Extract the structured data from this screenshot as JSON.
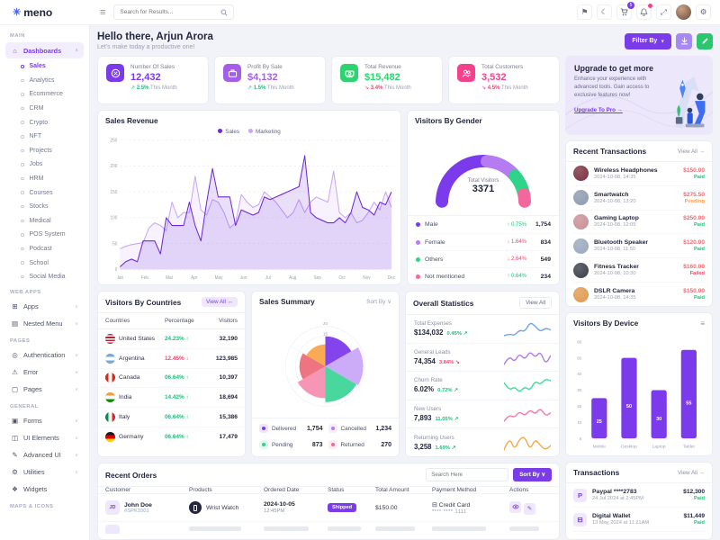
{
  "brand": {
    "logo_text": "meno",
    "logo_icon": "✳"
  },
  "topbar": {
    "hamburger_icon": "≡",
    "search_placeholder": "Search for Results...",
    "icons": [
      {
        "name": "language-icon",
        "glyph": "⚑"
      },
      {
        "name": "dark-mode-icon",
        "glyph": "☾"
      },
      {
        "name": "cart-icon",
        "glyph": "cart",
        "badge": "5",
        "badge_color": "#7c3aed"
      },
      {
        "name": "notifications-icon",
        "glyph": "bell",
        "dot_color": "#f5418c"
      },
      {
        "name": "fullscreen-icon",
        "glyph": "⤢"
      },
      {
        "name": "avatar",
        "glyph": "avatar"
      },
      {
        "name": "settings-icon",
        "glyph": "⚙"
      }
    ]
  },
  "sidebar": {
    "sections": [
      {
        "label": "MAIN",
        "items": [
          {
            "label": "Dashboards",
            "icon": "home",
            "active": true,
            "collapsible": true,
            "expanded": true,
            "active_child": "Sales",
            "children": [
              "Sales",
              "Analytics",
              "Ecommerce",
              "CRM",
              "Crypto",
              "NFT",
              "Projects",
              "Jobs",
              "HRM",
              "Courses",
              "Stocks",
              "Medical",
              "POS System",
              "Podcast",
              "School",
              "Social Media"
            ]
          }
        ]
      },
      {
        "label": "WEB APPS",
        "items": [
          {
            "label": "Apps",
            "icon": "apps",
            "collapsible": true
          },
          {
            "label": "Nested Menu",
            "icon": "nested",
            "collapsible": true
          }
        ]
      },
      {
        "label": "PAGES",
        "items": [
          {
            "label": "Authentication",
            "icon": "auth",
            "collapsible": true
          },
          {
            "label": "Error",
            "icon": "error",
            "collapsible": true
          },
          {
            "label": "Pages",
            "icon": "pages",
            "collapsible": true
          }
        ]
      },
      {
        "label": "GENERAL",
        "items": [
          {
            "label": "Forms",
            "icon": "forms",
            "collapsible": true
          },
          {
            "label": "UI Elements",
            "icon": "ui",
            "collapsible": true
          },
          {
            "label": "Advanced UI",
            "icon": "advui",
            "collapsible": true
          },
          {
            "label": "Utilities",
            "icon": "util",
            "collapsible": true
          },
          {
            "label": "Widgets",
            "icon": "widgets",
            "collapsible": false
          }
        ]
      },
      {
        "label": "MAPS & ICONS",
        "items": []
      }
    ]
  },
  "header": {
    "greeting": "Hello there, Arjun Arora",
    "subtitle": "Let's make today a productive one!",
    "filter_button": "Filter By"
  },
  "stat_cards": [
    {
      "title": "Number Of Sales",
      "value": "12,432",
      "delta": "2.5%",
      "delta_dir": "up",
      "period": "This Month",
      "accent": "#7c3aed",
      "icon": "sales"
    },
    {
      "title": "Profit By Sale",
      "value": "$4,132",
      "delta": "1.5%",
      "delta_dir": "up",
      "period": "This Month",
      "accent": "#a55eea",
      "icon": "briefcase"
    },
    {
      "title": "Total Revenue",
      "value": "$15,482",
      "delta": "3.4%",
      "delta_dir": "down",
      "period": "This Month",
      "accent": "#2dd36f",
      "icon": "revenue"
    },
    {
      "title": "Total Customers",
      "value": "3,532",
      "delta": "4.5%",
      "delta_dir": "down",
      "period": "This Month",
      "accent": "#f5418c",
      "icon": "customers"
    }
  ],
  "upgrade": {
    "title": "Upgrade to get more",
    "body": "Enhance your experience with advanced tools. Gain access to exclusive features now!",
    "link": "Upgrade To Pro →"
  },
  "sales_revenue": {
    "title": "Sales Revenue"
  },
  "visitors_gender": {
    "title": "Visitors By Gender",
    "center_label": "Total Visitors",
    "center_value": "3371",
    "rows": [
      {
        "label": "Male",
        "color": "#7c3aed",
        "delta": "0.75%",
        "dir": "up",
        "value": "1,754"
      },
      {
        "label": "Female",
        "color": "#b57bf0",
        "delta": "1.64%",
        "dir": "down",
        "value": "834"
      },
      {
        "label": "Others",
        "color": "#2fd38a",
        "delta": "2.64%",
        "dir": "down",
        "value": "549"
      },
      {
        "label": "Not mentioned",
        "color": "#f4679d",
        "delta": "0.64%",
        "dir": "up",
        "value": "234"
      }
    ]
  },
  "recent_transactions": {
    "title": "Recent Transactions",
    "view_all": "View All →",
    "items": [
      {
        "name": "Wireless Headphones",
        "datetime": "2024-10-08, 14:35",
        "amount": "$150.00",
        "status": "Paid",
        "img_color": "#7a3040"
      },
      {
        "name": "Smartwatch",
        "datetime": "2024-10-08, 13:20",
        "amount": "$275.50",
        "status": "Pending",
        "img_color": "#8d9ab0"
      },
      {
        "name": "Gaming Laptop",
        "datetime": "2024-10-08, 12:05",
        "amount": "$250.00",
        "status": "Paid",
        "img_color": "#c98f96"
      },
      {
        "name": "Bluetooth Speaker",
        "datetime": "2024-10-08, 11:50",
        "amount": "$120.00",
        "status": "Paid",
        "img_color": "#9aa7bd"
      },
      {
        "name": "Fitness Tracker",
        "datetime": "2024-10-08, 10:30",
        "amount": "$160.00",
        "status": "Failed",
        "img_color": "#3a3f4a"
      },
      {
        "name": "DSLR Camera",
        "datetime": "2024-10-08, 14:35",
        "amount": "$150.00",
        "status": "Paid",
        "img_color": "#e09a4e"
      }
    ]
  },
  "visitors_countries": {
    "title": "Visitors By Countries",
    "view_all": "View All ↔",
    "columns": [
      "Countries",
      "Percentage",
      "Visitors"
    ],
    "rows": [
      {
        "country": "United States",
        "flag": "us",
        "pct": "24.23%",
        "dir": "up",
        "visitors": "32,190"
      },
      {
        "country": "Argentina",
        "flag": "ar",
        "pct": "12.45%",
        "dir": "down",
        "visitors": "123,985"
      },
      {
        "country": "Canada",
        "flag": "ca",
        "pct": "06.64%",
        "dir": "up",
        "visitors": "10,397"
      },
      {
        "country": "India",
        "flag": "in",
        "pct": "14.42%",
        "dir": "up",
        "visitors": "18,694"
      },
      {
        "country": "Italy",
        "flag": "it",
        "pct": "06.64%",
        "dir": "up",
        "visitors": "15,386"
      },
      {
        "country": "Germany",
        "flag": "de",
        "pct": "06.64%",
        "dir": "up",
        "visitors": "17,479"
      }
    ]
  },
  "sales_summary": {
    "title": "Sales Summary",
    "sort_label": "Sort By ∨",
    "legend": [
      {
        "label": "Delivered",
        "value": "1,754",
        "color": "#7c3aed"
      },
      {
        "label": "Cancelled",
        "value": "1,234",
        "color": "#b57bf0"
      },
      {
        "label": "Pending",
        "value": "873",
        "color": "#2fd38a"
      },
      {
        "label": "Returned",
        "value": "270",
        "color": "#f4679d"
      }
    ]
  },
  "overall_statistics": {
    "title": "Overall Statistics",
    "view_all": "View All",
    "rows": [
      {
        "label": "Total Expenses",
        "value": "$134,032",
        "delta": "0.45%",
        "dir": "up",
        "spark_color": "#6aa6f8",
        "spark": [
          4,
          4.5,
          4,
          5.5,
          5,
          7.5,
          6.5,
          5,
          6,
          5.5
        ]
      },
      {
        "label": "General Leads",
        "value": "74,354",
        "delta": "3.84%",
        "dir": "down",
        "spark_color": "#b07de8",
        "spark": [
          4,
          6,
          4.5,
          6.5,
          5,
          7,
          5.5,
          7,
          4,
          6
        ]
      },
      {
        "label": "Churn Rate",
        "value": "6.02%",
        "delta": "0.72%",
        "dir": "up",
        "spark_color": "#3ddc97",
        "spark": [
          6,
          4,
          5,
          3.5,
          5,
          4,
          6.5,
          5.5,
          7,
          6.5
        ]
      },
      {
        "label": "New Users",
        "value": "7,893",
        "delta": "11.05%",
        "dir": "up",
        "spark_color": "#f278a8",
        "spark": [
          3,
          5,
          4,
          6,
          4.5,
          6.5,
          5,
          7,
          4.5,
          5.5
        ]
      },
      {
        "label": "Returning Users",
        "value": "3,258",
        "delta": "1.69%",
        "dir": "up",
        "spark_color": "#f5a64b",
        "spark": [
          4,
          7,
          4,
          6.5,
          7,
          4,
          6.5,
          5,
          4,
          5
        ]
      }
    ]
  },
  "visitors_device": {
    "title": "Visitors By Device"
  },
  "recent_orders": {
    "title": "Recent Orders",
    "search_placeholder": "Search Here",
    "sort_label": "Sort By ∨",
    "columns": [
      "Customer",
      "Products",
      "Ordered Date",
      "Status",
      "Total Amount",
      "Payment Method",
      "Actions"
    ],
    "rows": [
      {
        "customer": "John Doe",
        "customer_id": "#SPK1001",
        "initials": "JD",
        "product": "Wrist Watch",
        "date": "2024-10-05",
        "time": "12:45PM",
        "status": "Shipped",
        "amount": "$150.00",
        "payment": "Credit Card",
        "payment_sub": "**** **** 1111"
      }
    ]
  },
  "transactions": {
    "title": "Transactions",
    "view_all": "View All →",
    "items": [
      {
        "name": "Paypal ****2783",
        "date": "24 Jul 2024 at 2:45PM",
        "amount": "$12,300",
        "status": "Paid",
        "icon": "P"
      },
      {
        "name": "Digital Wallet",
        "date": "13 May 2024 at 11:21AM",
        "amount": "$11,449",
        "status": "Paid",
        "icon": "⊟"
      }
    ]
  },
  "status_colors": {
    "Paid": "#1fc07a",
    "Pending": "#ff9f43",
    "Failed": "#f4436c",
    "Shipped": "#7c3aed"
  },
  "delta_colors": {
    "up": "#1fc07a",
    "down": "#f4436c"
  },
  "chart_data": [
    {
      "id": "sales_revenue",
      "type": "area",
      "title": "Sales Revenue",
      "x_labels": [
        "Jan",
        "Feb",
        "Mar",
        "Apr",
        "May",
        "Jun",
        "Jul",
        "Aug",
        "Sep",
        "Oct",
        "Nov",
        "Dec"
      ],
      "ylim": [
        0,
        250
      ],
      "yticks": [
        0,
        50,
        100,
        150,
        200,
        250
      ],
      "grid": true,
      "legend_position": "top",
      "series": [
        {
          "name": "Sales",
          "color": "#6d28d9",
          "values": [
            5,
            15,
            20,
            15,
            55,
            55,
            55,
            30,
            100,
            85,
            85,
            85,
            130,
            85,
            55,
            130,
            195,
            140,
            140,
            140,
            85,
            115,
            110,
            105,
            110,
            140,
            135,
            140,
            145,
            150,
            155,
            160,
            220,
            110,
            100,
            95,
            90,
            90,
            100,
            90,
            110,
            150,
            120,
            115,
            105,
            130,
            125,
            150
          ]
        },
        {
          "name": "Marketing",
          "color": "#c7a7f6",
          "values": [
            40,
            45,
            48,
            50,
            52,
            80,
            90,
            85,
            75,
            130,
            100,
            110,
            110,
            180,
            115,
            105,
            135,
            130,
            110,
            80,
            90,
            145,
            130,
            120,
            125,
            150,
            140,
            130,
            115,
            100,
            110,
            135,
            110,
            130,
            140,
            135,
            130,
            190,
            110,
            100,
            110,
            90,
            95,
            110,
            130,
            115,
            150,
            120
          ]
        }
      ]
    },
    {
      "id": "visitors_by_gender",
      "type": "gauge-donut",
      "title": "Visitors By Gender",
      "center_label": "Total Visitors",
      "center_value": 3371,
      "slices": [
        {
          "label": "Male",
          "value": 1754,
          "color": "#7c3aed"
        },
        {
          "label": "Female",
          "value": 834,
          "color": "#b57bf0"
        },
        {
          "label": "Others",
          "value": 549,
          "color": "#2fd38a"
        },
        {
          "label": "Not mentioned",
          "value": 234,
          "color": "#f4679d"
        }
      ]
    },
    {
      "id": "sales_summary",
      "type": "polar-area",
      "title": "Sales Summary",
      "rmax": 20,
      "rticks": [
        15,
        20
      ],
      "slices": [
        {
          "value": 15,
          "color": "#7c3aed"
        },
        {
          "value": 19,
          "color": "#c9a8f9"
        },
        {
          "value": 18,
          "color": "#3ed598"
        },
        {
          "value": 16,
          "color": "#f78fb3"
        },
        {
          "value": 13,
          "color": "#ee6d7a"
        },
        {
          "value": 11,
          "color": "#f8a54c"
        }
      ]
    },
    {
      "id": "visitors_by_device",
      "type": "bar",
      "title": "Visitors By Device",
      "categories": [
        "Mobile",
        "Desktop",
        "Laptop",
        "Tablet"
      ],
      "values": [
        25,
        50,
        30,
        55
      ],
      "ylim": [
        0,
        60
      ],
      "yticks": [
        0,
        10,
        20,
        30,
        40,
        50,
        60
      ],
      "bar_color": "#7c3aed"
    }
  ]
}
